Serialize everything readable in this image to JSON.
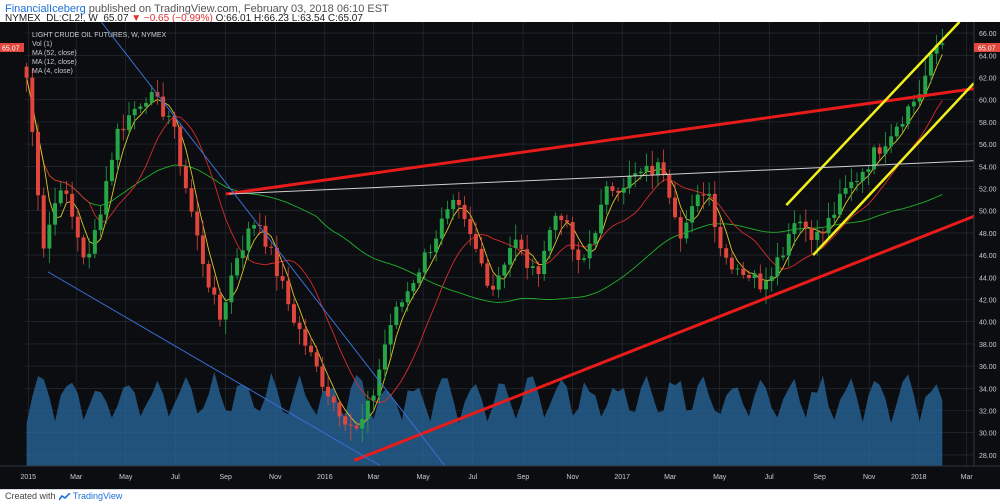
{
  "header": {
    "author": "FinancialIceberg",
    "published": " published on TradingView.com, February 03, 2018 06:10 EST",
    "symbol": "NYMEX_DL:CL2!, W",
    "last": "65.07",
    "change": "▼ −0.65 (−0.99%)",
    "ohlc": "O:66.01 H:66.23 L:63.54 C:65.07"
  },
  "legend": {
    "title": "LIGHT CRUDE OIL FUTURES, W, NYMEX",
    "items": [
      "Vol (1)",
      "MA (52, close)",
      "MA (12, close)",
      "MA (4, close)"
    ]
  },
  "price_tag": "65.07",
  "footer": {
    "created": "Created with",
    "brand": "TradingView"
  },
  "colors": {
    "background": "#0b0d10",
    "grid": "#2a2f38",
    "up": "#26a647",
    "down": "#e0463c",
    "ma52": "#22b02a",
    "ma12": "#d62d2d",
    "ma4": "#d9c72a",
    "volume": "#2a6aa0",
    "trend_red": "#e81b1b",
    "channel_yellow": "#f2f21a",
    "line_white": "#cfcfcf",
    "line_blue": "#3b6fd6"
  },
  "chart_data": {
    "type": "candlestick",
    "title": "LIGHT CRUDE OIL FUTURES, W, NYMEX",
    "ylim": [
      27,
      67
    ],
    "yticks": [
      28,
      30,
      32,
      34,
      36,
      38,
      40,
      42,
      44,
      46,
      48,
      50,
      52,
      54,
      56,
      58,
      60,
      62,
      64,
      66
    ],
    "xlim": [
      "2014-12-28",
      "2018-03-10"
    ],
    "xticks": [
      {
        "date": "2015-01-01",
        "label": "2015"
      },
      {
        "date": "2015-03-01",
        "label": "Mar"
      },
      {
        "date": "2015-05-01",
        "label": "May"
      },
      {
        "date": "2015-07-01",
        "label": "Jul"
      },
      {
        "date": "2015-09-01",
        "label": "Sep"
      },
      {
        "date": "2015-11-01",
        "label": "Nov"
      },
      {
        "date": "2016-01-01",
        "label": "2016"
      },
      {
        "date": "2016-03-01",
        "label": "Mar"
      },
      {
        "date": "2016-05-01",
        "label": "May"
      },
      {
        "date": "2016-07-01",
        "label": "Jul"
      },
      {
        "date": "2016-09-01",
        "label": "Sep"
      },
      {
        "date": "2016-11-01",
        "label": "Nov"
      },
      {
        "date": "2017-01-01",
        "label": "2017"
      },
      {
        "date": "2017-03-01",
        "label": "Mar"
      },
      {
        "date": "2017-05-01",
        "label": "May"
      },
      {
        "date": "2017-07-01",
        "label": "Jul"
      },
      {
        "date": "2017-09-01",
        "label": "Sep"
      },
      {
        "date": "2017-11-01",
        "label": "Nov"
      },
      {
        "date": "2018-01-01",
        "label": "2018"
      },
      {
        "date": "2018-03-01",
        "label": "Mar"
      }
    ],
    "anchors": [
      {
        "date": "2014-12-30",
        "close": 62
      },
      {
        "date": "2015-01-20",
        "close": 47
      },
      {
        "date": "2015-02-10",
        "close": 52.5
      },
      {
        "date": "2015-03-15",
        "close": 45
      },
      {
        "date": "2015-04-20",
        "close": 57
      },
      {
        "date": "2015-05-25",
        "close": 60.5
      },
      {
        "date": "2015-06-25",
        "close": 58.5
      },
      {
        "date": "2015-07-28",
        "close": 47.5
      },
      {
        "date": "2015-08-24",
        "close": 40
      },
      {
        "date": "2015-09-15",
        "close": 46
      },
      {
        "date": "2015-10-10",
        "close": 49.5
      },
      {
        "date": "2015-11-20",
        "close": 41
      },
      {
        "date": "2015-12-20",
        "close": 36
      },
      {
        "date": "2016-01-10",
        "close": 33
      },
      {
        "date": "2016-02-10",
        "close": 30
      },
      {
        "date": "2016-02-28",
        "close": 33
      },
      {
        "date": "2016-03-20",
        "close": 39.5
      },
      {
        "date": "2016-04-20",
        "close": 44
      },
      {
        "date": "2016-05-25",
        "close": 49
      },
      {
        "date": "2016-06-10",
        "close": 50.5
      },
      {
        "date": "2016-07-25",
        "close": 43
      },
      {
        "date": "2016-08-20",
        "close": 47.5
      },
      {
        "date": "2016-09-15",
        "close": 44
      },
      {
        "date": "2016-10-15",
        "close": 50.5
      },
      {
        "date": "2016-11-10",
        "close": 44.5
      },
      {
        "date": "2016-12-15",
        "close": 52
      },
      {
        "date": "2017-01-15",
        "close": 53
      },
      {
        "date": "2017-02-20",
        "close": 54
      },
      {
        "date": "2017-03-15",
        "close": 48
      },
      {
        "date": "2017-04-15",
        "close": 52.5
      },
      {
        "date": "2017-05-05",
        "close": 46
      },
      {
        "date": "2017-06-20",
        "close": 43.5
      },
      {
        "date": "2017-07-15",
        "close": 46
      },
      {
        "date": "2017-08-01",
        "close": 49.5
      },
      {
        "date": "2017-09-01",
        "close": 47.5
      },
      {
        "date": "2017-10-01",
        "close": 51.5
      },
      {
        "date": "2017-11-01",
        "close": 54.5
      },
      {
        "date": "2017-12-01",
        "close": 57.5
      },
      {
        "date": "2018-01-01",
        "close": 60.5
      },
      {
        "date": "2018-01-26",
        "close": 65.5
      },
      {
        "date": "2018-02-02",
        "close": 65.07
      }
    ],
    "trendlines": [
      {
        "name": "red-resistance",
        "color": "#e81b1b",
        "width": 3,
        "p1": {
          "date": "2015-09-01",
          "value": 51.5
        },
        "p2": {
          "date": "2018-03-10",
          "value": 61
        }
      },
      {
        "name": "red-support",
        "color": "#e81b1b",
        "width": 3,
        "p1": {
          "date": "2016-02-06",
          "value": 27.5
        },
        "p2": {
          "date": "2018-03-10",
          "value": 49.5
        }
      },
      {
        "name": "yellow-upper",
        "color": "#f2f21a",
        "width": 2.5,
        "p1": {
          "date": "2017-07-22",
          "value": 50.5
        },
        "p2": {
          "date": "2018-02-20",
          "value": 67
        }
      },
      {
        "name": "yellow-lower",
        "color": "#f2f21a",
        "width": 2.5,
        "p1": {
          "date": "2017-08-24",
          "value": 46
        },
        "p2": {
          "date": "2018-03-10",
          "value": 61.5
        }
      },
      {
        "name": "white-line",
        "color": "#cfcfcf",
        "width": 1,
        "p1": {
          "date": "2015-09-05",
          "value": 51.5
        },
        "p2": {
          "date": "2018-03-10",
          "value": 54.5
        }
      },
      {
        "name": "blue-steep",
        "color": "#3b6fd6",
        "width": 1,
        "p1": {
          "date": "2015-04-01",
          "value": 67
        },
        "p2": {
          "date": "2016-05-28",
          "value": 27
        }
      },
      {
        "name": "blue-low",
        "color": "#3b6fd6",
        "width": 1,
        "p1": {
          "date": "2015-01-25",
          "value": 44.5
        },
        "p2": {
          "date": "2016-03-10",
          "value": 27
        }
      }
    ]
  }
}
